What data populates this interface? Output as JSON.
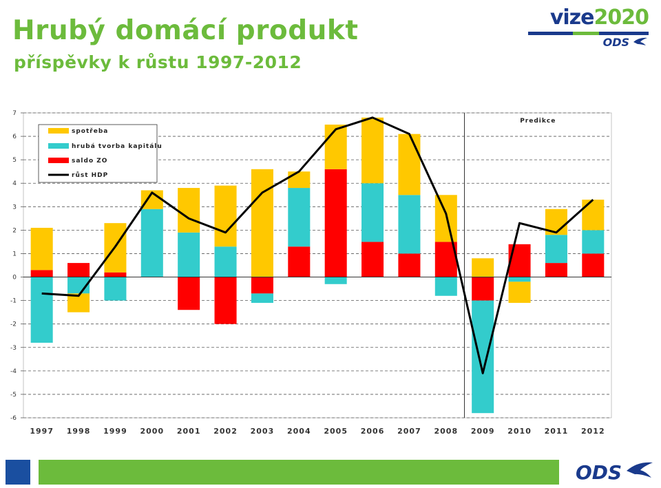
{
  "header": {
    "title": "Hrubý domácí produkt",
    "subtitle": "příspěvky k růstu 1997-2012"
  },
  "brand": {
    "vize_part1": "vize",
    "vize_part2": "2020",
    "ods_label": "ODS",
    "bird_icon": "ods-bird-icon"
  },
  "footer": {
    "ods_label": "ODS",
    "colors": {
      "blue": "#1a4fa0",
      "green": "#6cbb3c"
    }
  },
  "chart_data": {
    "type": "bar",
    "stacked": true,
    "categories": [
      "1997",
      "1998",
      "1999",
      "2000",
      "2001",
      "2002",
      "2003",
      "2004",
      "2005",
      "2006",
      "2007",
      "2008",
      "2009",
      "2010",
      "2011",
      "2012"
    ],
    "ylim": [
      -6,
      7
    ],
    "yticks": [
      7,
      6,
      5,
      4,
      3,
      2,
      1,
      0,
      -1,
      -2,
      -3,
      -4,
      -5,
      -6
    ],
    "grid": true,
    "legend_position": "top-left",
    "prediction_label": "Predikce",
    "prediction_start_category": "2009",
    "series": [
      {
        "name": "spotřeba",
        "color": "#ffc800",
        "kind": "bar",
        "values": [
          1.8,
          -0.8,
          2.1,
          0.8,
          1.9,
          2.6,
          4.6,
          0.7,
          1.9,
          2.8,
          2.6,
          2.0,
          0.8,
          -0.9,
          1.1,
          1.3
        ]
      },
      {
        "name": "hrubá tvorba kapitálu",
        "color": "#33cccc",
        "kind": "bar",
        "values": [
          -2.8,
          -0.7,
          -1.0,
          2.9,
          1.9,
          1.3,
          -0.4,
          2.5,
          -0.3,
          2.5,
          2.5,
          -0.8,
          -4.8,
          -0.2,
          1.2,
          1.0
        ]
      },
      {
        "name": "saldo ZO",
        "color": "#ff0000",
        "kind": "bar",
        "values": [
          0.3,
          0.6,
          0.2,
          0.0,
          -1.4,
          -2.0,
          -0.7,
          1.3,
          4.6,
          1.5,
          1.0,
          1.5,
          -1.0,
          1.4,
          0.6,
          1.0
        ]
      },
      {
        "name": "růst HDP",
        "color": "#000000",
        "kind": "line",
        "values": [
          -0.7,
          -0.8,
          1.3,
          3.6,
          2.5,
          1.9,
          3.6,
          4.5,
          6.3,
          6.8,
          6.1,
          2.7,
          -4.1,
          2.3,
          1.9,
          3.3
        ]
      }
    ]
  }
}
